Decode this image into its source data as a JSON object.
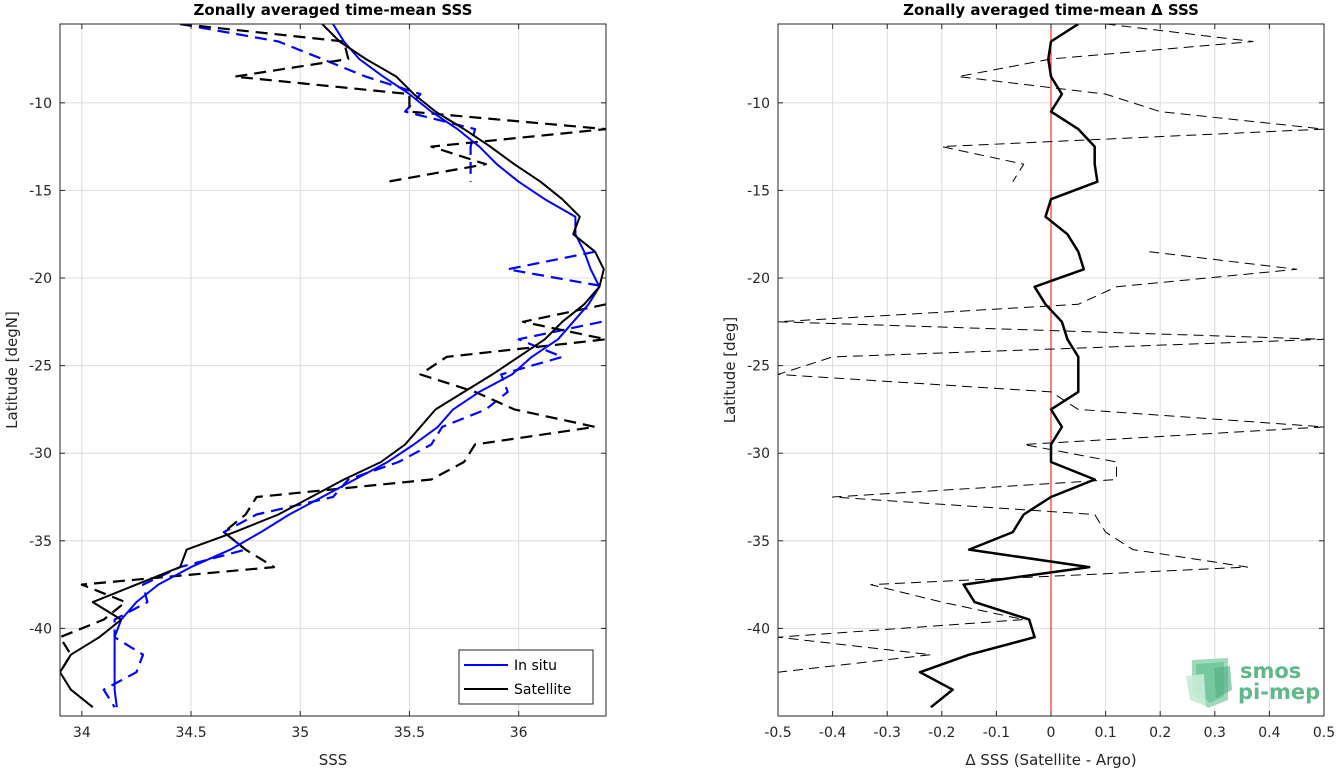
{
  "logo": {
    "line1": "smos",
    "line2": "pi-mep",
    "color": "#5fb88a"
  },
  "colors": {
    "in_situ": "#0000ff",
    "satellite": "#000000",
    "zero_line": "#ff0000",
    "grid": "#dcdcdc"
  },
  "chart_data": [
    {
      "type": "line",
      "title": "Zonally averaged time-mean SSS",
      "xlabel": "SSS",
      "ylabel": "Latitude [degN]",
      "xlim": [
        33.9,
        36.4
      ],
      "ylim": [
        -45,
        -5.5
      ],
      "xticks": [
        34,
        34.5,
        35,
        35.5,
        36
      ],
      "xtick_labels": [
        "34",
        "34.5",
        "35",
        "35.5",
        "36"
      ],
      "yticks": [
        -10,
        -15,
        -20,
        -25,
        -30,
        -35,
        -40
      ],
      "ytick_labels": [
        "-10",
        "-15",
        "-20",
        "-25",
        "-30",
        "-35",
        "-40"
      ],
      "grid": true,
      "legend": {
        "placement": "bottom-right",
        "entries": [
          "In situ",
          "Satellite"
        ]
      },
      "y": [
        -5.5,
        -6.5,
        -7.5,
        -8.5,
        -9.5,
        -10.5,
        -11.5,
        -12.5,
        -13.5,
        -14.5,
        -15.5,
        -16.5,
        -17.5,
        -18.5,
        -19.5,
        -20.5,
        -21.5,
        -22.5,
        -23.5,
        -24.5,
        -25.5,
        -26.5,
        -27.5,
        -28.5,
        -29.5,
        -30.5,
        -31.5,
        -32.5,
        -33.5,
        -34.5,
        -35.5,
        -36.5,
        -37.5,
        -38.5,
        -39.5,
        -40.5,
        -41.5,
        -42.5,
        -43.5,
        -44.5
      ],
      "series": [
        {
          "name": "In situ",
          "style": "solid",
          "color": "#0000ff",
          "values": [
            35.15,
            35.2,
            35.27,
            35.38,
            35.5,
            35.6,
            35.72,
            35.82,
            35.9,
            36.0,
            36.12,
            36.26,
            36.26,
            36.3,
            36.33,
            36.37,
            36.32,
            36.25,
            36.18,
            36.06,
            35.97,
            35.82,
            35.7,
            35.63,
            35.52,
            35.4,
            35.25,
            35.1,
            34.95,
            34.82,
            34.68,
            34.5,
            34.35,
            34.25,
            34.18,
            34.15,
            34.15,
            34.15,
            34.15,
            34.16
          ]
        },
        {
          "name": "",
          "style": "dashed",
          "color": "#0000ff",
          "values": [
            34.45,
            34.9,
            35.1,
            35.3,
            35.55,
            35.48,
            35.8,
            35.78,
            35.78,
            35.78,
            null,
            null,
            null,
            36.35,
            35.95,
            36.4,
            null,
            36.38,
            36.0,
            36.2,
            35.92,
            35.95,
            35.85,
            35.65,
            35.6,
            35.45,
            35.22,
            35.15,
            34.8,
            34.65,
            34.75,
            34.45,
            34.28,
            34.3,
            34.15,
            34.15,
            34.28,
            34.25,
            34.1,
            34.15
          ]
        },
        {
          "name": "Satellite",
          "style": "solid",
          "color": "#000000",
          "values": [
            35.1,
            35.18,
            35.3,
            35.44,
            35.52,
            35.62,
            35.75,
            35.87,
            35.98,
            36.1,
            36.2,
            36.28,
            36.25,
            36.35,
            36.39,
            36.37,
            36.3,
            36.2,
            36.12,
            36.0,
            35.88,
            35.75,
            35.62,
            35.55,
            35.48,
            35.37,
            35.2,
            35.05,
            34.9,
            34.7,
            34.48,
            34.45,
            34.25,
            34.05,
            34.18,
            34.08,
            33.95,
            33.9,
            33.95,
            34.05
          ]
        },
        {
          "name": "",
          "style": "dashed",
          "color": "#000000",
          "values": [
            34.45,
            35.2,
            35.22,
            34.7,
            35.5,
            35.5,
            36.4,
            35.6,
            35.85,
            35.4,
            null,
            null,
            null,
            null,
            null,
            null,
            36.4,
            36.02,
            36.4,
            35.67,
            35.55,
            35.8,
            35.98,
            36.35,
            35.8,
            35.75,
            35.6,
            34.8,
            34.75,
            34.65,
            34.75,
            34.88,
            34.0,
            34.2,
            34.1,
            33.9,
            33.95,
            33.9,
            null,
            null
          ]
        }
      ]
    },
    {
      "type": "line",
      "title": "Zonally averaged time-mean Δ SSS",
      "xlabel": "Δ SSS (Satellite - Argo)",
      "ylabel": "Latitude [deg]",
      "xlim": [
        -0.5,
        0.5
      ],
      "ylim": [
        -45,
        -5.5
      ],
      "xticks": [
        -0.5,
        -0.4,
        -0.3,
        -0.2,
        -0.1,
        0,
        0.1,
        0.2,
        0.3,
        0.4,
        0.5
      ],
      "xtick_labels": [
        "-0.5",
        "-0.4",
        "-0.3",
        "-0.2",
        "-0.1",
        "0",
        "0.1",
        "0.2",
        "0.3",
        "0.4",
        "0.5"
      ],
      "yticks": [
        -10,
        -15,
        -20,
        -25,
        -30,
        -35,
        -40
      ],
      "ytick_labels": [
        "-10",
        "-15",
        "-20",
        "-25",
        "-30",
        "-35",
        "-40"
      ],
      "grid": true,
      "reference_line_x": 0,
      "y": [
        -5.5,
        -6.5,
        -7.5,
        -8.5,
        -9.5,
        -10.5,
        -11.5,
        -12.5,
        -13.5,
        -14.5,
        -15.5,
        -16.5,
        -17.5,
        -18.5,
        -19.5,
        -20.5,
        -21.5,
        -22.5,
        -23.5,
        -24.5,
        -25.5,
        -26.5,
        -27.5,
        -28.5,
        -29.5,
        -30.5,
        -31.5,
        -32.5,
        -33.5,
        -34.5,
        -35.5,
        -36.5,
        -37.5,
        -38.5,
        -39.5,
        -40.5,
        -41.5,
        -42.5,
        -43.5,
        -44.5
      ],
      "series": [
        {
          "name": "",
          "style": "solid",
          "color": "#000000",
          "values": [
            0.05,
            0.0,
            -0.005,
            0.0,
            0.02,
            0.0,
            0.05,
            0.08,
            0.08,
            0.085,
            0.0,
            -0.01,
            0.03,
            0.05,
            0.06,
            -0.03,
            -0.01,
            0.02,
            0.03,
            0.05,
            0.05,
            0.05,
            0.0,
            0.02,
            0.0,
            0.0,
            0.08,
            0.0,
            -0.05,
            -0.07,
            -0.15,
            0.07,
            -0.16,
            -0.14,
            -0.04,
            -0.03,
            -0.15,
            -0.24,
            -0.18,
            -0.22
          ]
        },
        {
          "name": "",
          "style": "dashed",
          "color": "#000000",
          "values": [
            0.1,
            0.37,
            0.0,
            -0.17,
            0.1,
            0.2,
            0.5,
            -0.2,
            -0.05,
            -0.07,
            null,
            null,
            null,
            0.18,
            0.45,
            0.12,
            0.05,
            -0.5,
            0.5,
            -0.4,
            -0.5,
            0.0,
            0.05,
            0.5,
            -0.05,
            0.12,
            0.12,
            -0.4,
            0.08,
            0.1,
            0.15,
            0.36,
            -0.33,
            -0.2,
            -0.05,
            -0.5,
            -0.22,
            -0.5,
            null,
            null
          ]
        }
      ]
    }
  ]
}
